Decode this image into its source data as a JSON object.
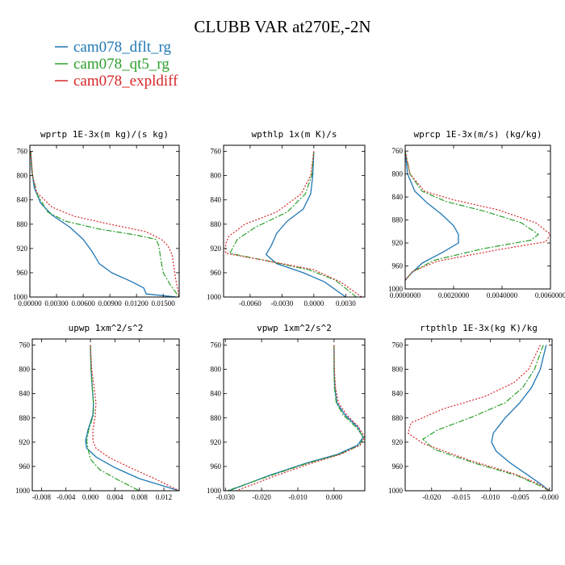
{
  "title": "CLUBB VAR at270E,-2N",
  "legend": [
    {
      "label": "cam078_dflt_rg",
      "color": "#1f77b4"
    },
    {
      "label": "cam078_qt5_rg",
      "color": "#2ca02c"
    },
    {
      "label": "cam078_expldiff",
      "color": "#d62728"
    }
  ],
  "chart_data": [
    {
      "type": "line",
      "title": "wprtp  1E-3x(m kg)/(s kg)",
      "xlim": [
        0.0,
        0.0168
      ],
      "ylim": [
        1000,
        750
      ],
      "xticks": [
        0.0,
        0.003,
        0.006,
        0.009,
        0.012,
        0.015
      ],
      "xticklabels": [
        "0.00000",
        "0.00300",
        "0.00600",
        "0.00900",
        "0.01200",
        "0.01500"
      ],
      "yticks": [
        760,
        800,
        840,
        880,
        920,
        960,
        1000
      ],
      "yticklabels": [
        "760",
        "800",
        "840",
        "880",
        "920",
        "960",
        "1000"
      ],
      "series": [
        {
          "name": "cam078_dflt_rg",
          "x": [
            0.0001,
            0.0002,
            0.0005,
            0.0012,
            0.0025,
            0.0045,
            0.006,
            0.007,
            0.0078,
            0.0092,
            0.0115,
            0.0128,
            0.0131,
            0.0165
          ],
          "y": [
            760,
            790,
            820,
            845,
            865,
            885,
            905,
            925,
            945,
            960,
            975,
            985,
            995,
            1000
          ]
        },
        {
          "name": "cam078_qt5_rg",
          "x": [
            0.0001,
            0.0003,
            0.0008,
            0.002,
            0.004,
            0.0078,
            0.012,
            0.0142,
            0.0145,
            0.0147,
            0.015,
            0.0158,
            0.0168
          ],
          "y": [
            760,
            800,
            830,
            860,
            875,
            888,
            898,
            905,
            915,
            935,
            960,
            980,
            1000
          ]
        },
        {
          "name": "cam078_expldiff",
          "x": [
            0.0001,
            0.0003,
            0.0008,
            0.0025,
            0.005,
            0.009,
            0.013,
            0.0148,
            0.0155,
            0.016,
            0.0162,
            0.0164,
            0.0168
          ],
          "y": [
            760,
            800,
            828,
            852,
            867,
            880,
            892,
            905,
            915,
            930,
            950,
            970,
            1000
          ]
        }
      ]
    },
    {
      "type": "line",
      "title": "wpthlp  1x(m K)/s",
      "xlim": [
        -0.0085,
        0.0048
      ],
      "ylim": [
        1000,
        750
      ],
      "xticks": [
        -0.006,
        -0.003,
        0.0,
        0.003
      ],
      "xticklabels": [
        "-0.0060",
        "-0.0030",
        "0.0000",
        "0.0030"
      ],
      "yticks": [
        760,
        800,
        840,
        880,
        920,
        960,
        1000
      ],
      "yticklabels": [
        "760",
        "800",
        "840",
        "880",
        "920",
        "960",
        "1000"
      ],
      "series": [
        {
          "name": "cam078_dflt_rg",
          "x": [
            0.0,
            -0.0001,
            -0.0003,
            -0.001,
            -0.0025,
            -0.0035,
            -0.004,
            -0.0045,
            -0.0035,
            -0.001,
            0.001,
            0.003
          ],
          "y": [
            760,
            800,
            830,
            855,
            875,
            895,
            915,
            930,
            945,
            960,
            975,
            1000
          ]
        },
        {
          "name": "cam078_qt5_rg",
          "x": [
            0.0,
            -0.0002,
            -0.0008,
            -0.0025,
            -0.0055,
            -0.0072,
            -0.0076,
            -0.0079,
            -0.0045,
            -0.0005,
            0.002,
            0.004
          ],
          "y": [
            760,
            800,
            830,
            860,
            885,
            905,
            918,
            928,
            940,
            955,
            972,
            1000
          ]
        },
        {
          "name": "cam078_expldiff",
          "x": [
            0.0,
            -0.0003,
            -0.0012,
            -0.0035,
            -0.0065,
            -0.008,
            -0.0083,
            -0.0083,
            -0.0045,
            0.0,
            0.0025,
            0.0045
          ],
          "y": [
            760,
            800,
            830,
            860,
            880,
            900,
            912,
            928,
            940,
            955,
            975,
            1000
          ]
        }
      ]
    },
    {
      "type": "line",
      "title": "wprcp  1E-3x(m/s) (kg/kg)",
      "xlim": [
        0.0,
        0.006
      ],
      "ylim": [
        1000,
        750
      ],
      "xticks": [
        0.0,
        0.002,
        0.004,
        0.006
      ],
      "xticklabels": [
        "0.0000000",
        "0.0020000",
        "0.0040000",
        "0.0060000"
      ],
      "yticks": [
        760,
        800,
        840,
        880,
        920,
        960,
        1000
      ],
      "yticklabels": [
        "760",
        "800",
        "840",
        "880",
        "920",
        "960",
        "1000"
      ],
      "series": [
        {
          "name": "cam078_dflt_rg",
          "x": [
            0.0,
            0.0001,
            0.0004,
            0.0009,
            0.0015,
            0.002,
            0.0022,
            0.0022,
            0.0016,
            0.0007,
            0.0002,
            0.0
          ],
          "y": [
            760,
            800,
            830,
            850,
            870,
            890,
            905,
            920,
            935,
            955,
            975,
            985
          ]
        },
        {
          "name": "cam078_qt5_rg",
          "x": [
            0.0,
            0.0002,
            0.0007,
            0.0017,
            0.0033,
            0.0048,
            0.0055,
            0.0052,
            0.0032,
            0.0012,
            0.0003,
            0.0
          ],
          "y": [
            760,
            800,
            830,
            848,
            865,
            885,
            905,
            915,
            930,
            950,
            970,
            985
          ]
        },
        {
          "name": "cam078_expldiff",
          "x": [
            0.0,
            0.0002,
            0.0008,
            0.002,
            0.0038,
            0.0054,
            0.006,
            0.0058,
            0.0038,
            0.0013,
            0.0003,
            0.0
          ],
          "y": [
            760,
            800,
            830,
            845,
            862,
            885,
            905,
            918,
            932,
            952,
            970,
            985
          ]
        }
      ]
    },
    {
      "type": "line",
      "title": "upwp  1xm^2/s^2",
      "xlim": [
        -0.0095,
        0.0145
      ],
      "ylim": [
        1000,
        750
      ],
      "xticks": [
        -0.008,
        -0.004,
        0.0,
        0.004,
        0.008,
        0.012
      ],
      "xticklabels": [
        "-0.008",
        "-0.004",
        "0.000",
        "0.004",
        "0.008",
        "0.012"
      ],
      "yticks": [
        760,
        800,
        840,
        880,
        920,
        960,
        1000
      ],
      "yticklabels": [
        "760",
        "800",
        "840",
        "880",
        "920",
        "960",
        "1000"
      ],
      "series": [
        {
          "name": "cam078_dflt_rg",
          "x": [
            0.0,
            0.0001,
            0.0003,
            0.0005,
            0.0004,
            -0.0004,
            -0.0008,
            -0.0006,
            0.001,
            0.004,
            0.008,
            0.0145
          ],
          "y": [
            760,
            800,
            830,
            855,
            875,
            900,
            918,
            930,
            945,
            962,
            980,
            1000
          ]
        },
        {
          "name": "cam078_qt5_rg",
          "x": [
            0.0,
            0.0001,
            0.0003,
            0.0005,
            0.0005,
            -0.0003,
            -0.0006,
            -0.0004,
            0.0,
            0.0015,
            0.0045,
            0.008
          ],
          "y": [
            760,
            800,
            830,
            855,
            875,
            900,
            918,
            930,
            948,
            965,
            982,
            1000
          ]
        },
        {
          "name": "cam078_expldiff",
          "x": [
            0.0,
            0.0002,
            0.0006,
            0.0009,
            0.0008,
            0.0004,
            0.0004,
            0.0009,
            0.003,
            0.0065,
            0.0105,
            0.0145
          ],
          "y": [
            760,
            800,
            830,
            855,
            875,
            900,
            918,
            930,
            945,
            962,
            980,
            1000
          ]
        }
      ]
    },
    {
      "type": "line",
      "title": "vpwp  1xm^2/s^2",
      "xlim": [
        -0.0305,
        0.0085
      ],
      "ylim": [
        1000,
        750
      ],
      "xticks": [
        -0.03,
        -0.02,
        -0.01,
        0.0
      ],
      "xticklabels": [
        "-0.030",
        "-0.020",
        "-0.010",
        "0.000"
      ],
      "yticks": [
        760,
        800,
        840,
        880,
        920,
        960,
        1000
      ],
      "yticklabels": [
        "760",
        "800",
        "840",
        "880",
        "920",
        "960",
        "1000"
      ],
      "series": [
        {
          "name": "cam078_dflt_rg",
          "x": [
            0.0,
            0.0,
            0.0002,
            0.0008,
            0.003,
            0.0065,
            0.008,
            0.0065,
            0.001,
            -0.008,
            -0.018,
            -0.029
          ],
          "y": [
            760,
            800,
            830,
            855,
            875,
            895,
            912,
            925,
            940,
            955,
            975,
            1000
          ]
        },
        {
          "name": "cam078_qt5_rg",
          "x": [
            0.0,
            0.0,
            0.0001,
            0.0006,
            0.0025,
            0.006,
            0.0082,
            0.007,
            0.0015,
            -0.0075,
            -0.0175,
            -0.0295
          ],
          "y": [
            760,
            800,
            830,
            855,
            875,
            895,
            912,
            925,
            940,
            955,
            975,
            1000
          ]
        },
        {
          "name": "cam078_expldiff",
          "x": [
            0.0,
            0.0001,
            0.0004,
            0.0012,
            0.0035,
            0.0068,
            0.0085,
            0.0072,
            0.0018,
            -0.0065,
            -0.016,
            -0.027
          ],
          "y": [
            760,
            800,
            830,
            855,
            875,
            895,
            912,
            925,
            940,
            955,
            975,
            1000
          ]
        }
      ]
    },
    {
      "type": "line",
      "title": "rtpthlp  1E-3x(kg K)/kg",
      "xlim": [
        -0.0245,
        0.0005
      ],
      "ylim": [
        1000,
        750
      ],
      "xticks": [
        -0.02,
        -0.015,
        -0.01,
        -0.005,
        0.0
      ],
      "xticklabels": [
        "-0.020",
        "-0.015",
        "-0.010",
        "-0.005",
        "-0.000"
      ],
      "yticks": [
        760,
        800,
        840,
        880,
        920,
        960,
        1000
      ],
      "yticklabels": [
        "760",
        "800",
        "840",
        "880",
        "920",
        "960",
        "1000"
      ],
      "series": [
        {
          "name": "cam078_dflt_rg",
          "x": [
            -0.0005,
            -0.0015,
            -0.003,
            -0.005,
            -0.0075,
            -0.0095,
            -0.0098,
            -0.009,
            -0.0065,
            -0.0035,
            -0.001,
            0.0
          ],
          "y": [
            760,
            800,
            830,
            855,
            880,
            905,
            920,
            935,
            955,
            975,
            992,
            1000
          ]
        },
        {
          "name": "cam078_qt5_rg",
          "x": [
            -0.001,
            -0.0025,
            -0.0045,
            -0.0075,
            -0.013,
            -0.019,
            -0.0215,
            -0.0195,
            -0.0125,
            -0.0055,
            -0.0015,
            0.0
          ],
          "y": [
            760,
            800,
            830,
            855,
            878,
            900,
            915,
            932,
            955,
            975,
            992,
            1000
          ]
        },
        {
          "name": "cam078_expldiff",
          "x": [
            -0.0015,
            -0.0035,
            -0.006,
            -0.011,
            -0.018,
            -0.0235,
            -0.024,
            -0.0215,
            -0.0135,
            -0.006,
            -0.0015,
            0.0
          ],
          "y": [
            760,
            800,
            822,
            845,
            865,
            888,
            905,
            922,
            950,
            972,
            990,
            1000
          ]
        }
      ]
    }
  ]
}
